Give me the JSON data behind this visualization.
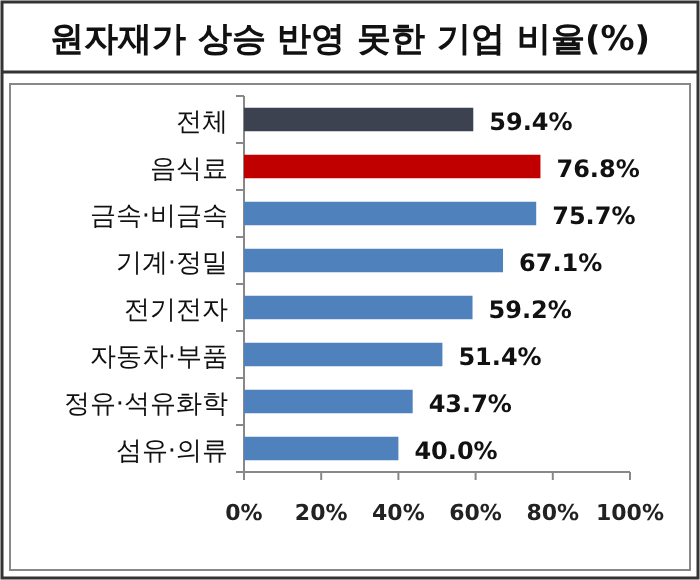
{
  "chart_data": {
    "type": "bar",
    "orientation": "horizontal",
    "title": "원자재가 상승 반영 못한 기업 비율(%)",
    "categories": [
      "전체",
      "음식료",
      "금속·비금속",
      "기계·정밀",
      "전기전자",
      "자동차·부품",
      "정유·석유화학",
      "섬유·의류"
    ],
    "values": [
      59.4,
      76.8,
      75.7,
      67.1,
      59.2,
      51.4,
      43.7,
      40.0
    ],
    "colors": [
      "#3c4250",
      "#c00000",
      "#4f81bd",
      "#4f81bd",
      "#4f81bd",
      "#4f81bd",
      "#4f81bd",
      "#4f81bd"
    ],
    "value_labels": [
      "59.4%",
      "76.8%",
      "75.7%",
      "67.1%",
      "59.2%",
      "51.4%",
      "43.7%",
      "40.0%"
    ],
    "xlim": [
      0,
      100
    ],
    "xticks": [
      {
        "value": 0,
        "label": "0%"
      },
      {
        "value": 20,
        "label": "20%"
      },
      {
        "value": 40,
        "label": "40%"
      },
      {
        "value": 60,
        "label": "60%"
      },
      {
        "value": 80,
        "label": "80%"
      },
      {
        "value": 100,
        "label": "100%"
      }
    ],
    "grid": false
  }
}
